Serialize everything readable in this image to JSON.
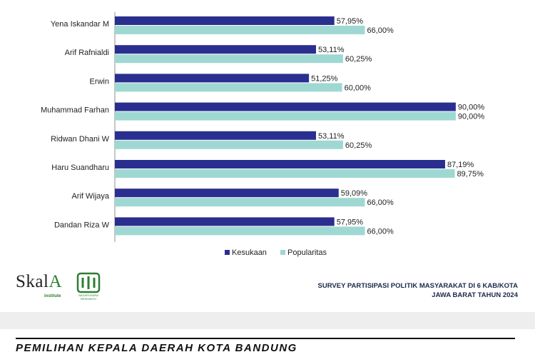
{
  "chart_data": {
    "type": "bar",
    "orientation": "horizontal",
    "categories": [
      "Yena Iskandar M",
      "Arif Rafnialdi",
      "Erwin",
      "Muhammad Farhan",
      "Ridwan Dhani W",
      "Haru Suandharu",
      "Arif Wijaya",
      "Dandan Riza W"
    ],
    "series": [
      {
        "name": "Kesukaan",
        "values": [
          57.95,
          53.11,
          51.25,
          90.0,
          53.11,
          87.19,
          59.09,
          57.95
        ],
        "labels": [
          "57,95%",
          "53,11%",
          "51,25%",
          "90,00%",
          "53,11%",
          "87,19%",
          "59,09%",
          "57,95%"
        ],
        "color": "#2a2f8f"
      },
      {
        "name": "Popularitas",
        "values": [
          66.0,
          60.25,
          60.0,
          90.0,
          60.25,
          89.75,
          66.0,
          66.0
        ],
        "labels": [
          "66,00%",
          "60,25%",
          "60,00%",
          "90,00%",
          "60,25%",
          "89,75%",
          "66,00%",
          "66,00%"
        ],
        "color": "#9fd8d3"
      }
    ],
    "xlim": [
      0,
      100
    ],
    "legend_position": "bottom",
    "grid": false
  },
  "logo": {
    "name": "Skala",
    "sub": "institute",
    "emblem_text": "NAGAPUSARA RESEARCH"
  },
  "survey": {
    "line1": "SURVEY PARTISIPASI POLITIK MASYARAKAT DI 6 KAB/KOTA",
    "line2": "JAWA BARAT TAHUN 2024"
  },
  "bottom_title": "PEMILIHAN KEPALA DAERAH KOTA BANDUNG"
}
